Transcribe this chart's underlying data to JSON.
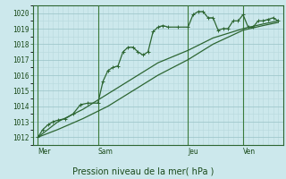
{
  "xlabel": "Pression niveau de la mer( hPa )",
  "bg_color": "#cce8ec",
  "grid_minor_color": "#b8d8dc",
  "grid_major_color": "#a0c8cc",
  "line_color": "#2d6632",
  "dark_line_color": "#1a4a1a",
  "ylim": [
    1011.5,
    1020.5
  ],
  "xlim": [
    0,
    100
  ],
  "yticks": [
    1012,
    1013,
    1014,
    1015,
    1016,
    1017,
    1018,
    1019,
    1020
  ],
  "day_labels": [
    "Mer",
    "Sam",
    "Jeu",
    "Ven"
  ],
  "day_positions": [
    2,
    26,
    62,
    84
  ],
  "series1_x": [
    2,
    4,
    6,
    8,
    10,
    13,
    16,
    19,
    22,
    26,
    28,
    30,
    32,
    34,
    36,
    38,
    40,
    42,
    44,
    46,
    48,
    50,
    52,
    54,
    58,
    62,
    64,
    66,
    68,
    70,
    72,
    74,
    76,
    78,
    80,
    82,
    84,
    86,
    88,
    90,
    92,
    94,
    96,
    98
  ],
  "series1_y": [
    1012.0,
    1012.5,
    1012.8,
    1013.0,
    1013.1,
    1013.2,
    1013.5,
    1014.1,
    1014.2,
    1014.2,
    1015.6,
    1016.3,
    1016.5,
    1016.6,
    1017.5,
    1017.8,
    1017.8,
    1017.5,
    1017.3,
    1017.5,
    1018.8,
    1019.1,
    1019.2,
    1019.1,
    1019.1,
    1019.1,
    1019.9,
    1020.1,
    1020.1,
    1019.7,
    1019.7,
    1018.9,
    1019.0,
    1019.0,
    1019.5,
    1019.5,
    1019.9,
    1019.1,
    1019.1,
    1019.5,
    1019.5,
    1019.6,
    1019.7,
    1019.5
  ],
  "series2_x": [
    2,
    10,
    20,
    30,
    40,
    50,
    62,
    72,
    84,
    92,
    98
  ],
  "series2_y": [
    1012.0,
    1013.0,
    1013.8,
    1014.8,
    1015.8,
    1016.8,
    1017.6,
    1018.4,
    1019.0,
    1019.3,
    1019.5
  ],
  "series3_x": [
    2,
    10,
    20,
    30,
    40,
    50,
    62,
    72,
    84,
    92,
    98
  ],
  "series3_y": [
    1012.0,
    1012.5,
    1013.2,
    1014.0,
    1015.0,
    1016.0,
    1017.0,
    1018.0,
    1018.9,
    1019.2,
    1019.4
  ]
}
